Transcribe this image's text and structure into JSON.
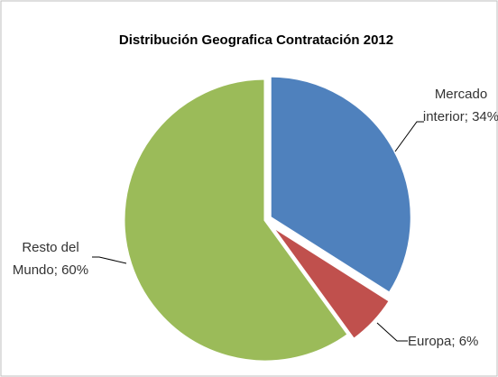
{
  "chart_data": {
    "type": "pie",
    "title": "Distribución Geografica Contratación 2012",
    "categories": [
      "Mercado interior",
      "Europa",
      "Resto del Mundo"
    ],
    "values": [
      34,
      6,
      60
    ],
    "value_labels": [
      "34%",
      "6%",
      "60%"
    ],
    "label_separator": ";",
    "colors": [
      "#4f81bd",
      "#c0504d",
      "#9bbb59"
    ]
  }
}
